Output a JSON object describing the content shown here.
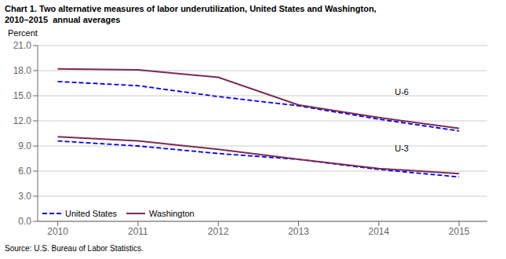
{
  "chart_data": {
    "type": "line",
    "title": "Chart 1. Two alternative measures of labor underutilization, United States and Washington,",
    "subtitle": "2010–2015  annual averages",
    "ylabel": "Percent",
    "source": "Source: U.S. Bureau of Labor Statistics.",
    "x": [
      2010,
      2011,
      2012,
      2013,
      2014,
      2015
    ],
    "series": [
      {
        "name": "United States",
        "color": "#0000EE",
        "line_style": "dashed",
        "values": [
          16.7,
          16.2,
          14.9,
          13.8,
          12.2,
          10.8
        ]
      },
      {
        "name": "Washington",
        "color": "#7B2B55",
        "line_style": "solid",
        "values": [
          18.2,
          18.1,
          17.2,
          13.9,
          12.4,
          11.1
        ]
      },
      {
        "name": "United States",
        "color": "#0000EE",
        "line_style": "dashed",
        "values": [
          9.6,
          9.0,
          8.1,
          7.4,
          6.2,
          5.3
        ]
      },
      {
        "name": "Washington",
        "color": "#7B2B55",
        "line_style": "solid",
        "values": [
          10.1,
          9.6,
          8.6,
          7.4,
          6.3,
          5.7
        ]
      }
    ],
    "annotations": [
      {
        "text": "U-6",
        "x": 2014.15,
        "y": 15.5
      },
      {
        "text": "U-3",
        "x": 2014.15,
        "y": 8.7
      }
    ],
    "xlim": [
      2009.75,
      2015.35
    ],
    "xticks": [
      2010,
      2011,
      2012,
      2013,
      2014,
      2015
    ],
    "ylim": [
      0.0,
      21.0
    ],
    "yticks": [
      {
        "value": 0,
        "label": "0.0"
      },
      {
        "value": 3,
        "label": "3.0"
      },
      {
        "value": 6,
        "label": "6.0"
      },
      {
        "value": 9,
        "label": "9.0"
      },
      {
        "value": 12,
        "label": "12.0"
      },
      {
        "value": 15,
        "label": "15.0"
      },
      {
        "value": 18,
        "label": "18.0"
      },
      {
        "value": 21,
        "label": "21.0"
      }
    ],
    "grid": true,
    "legend": "lower left"
  }
}
